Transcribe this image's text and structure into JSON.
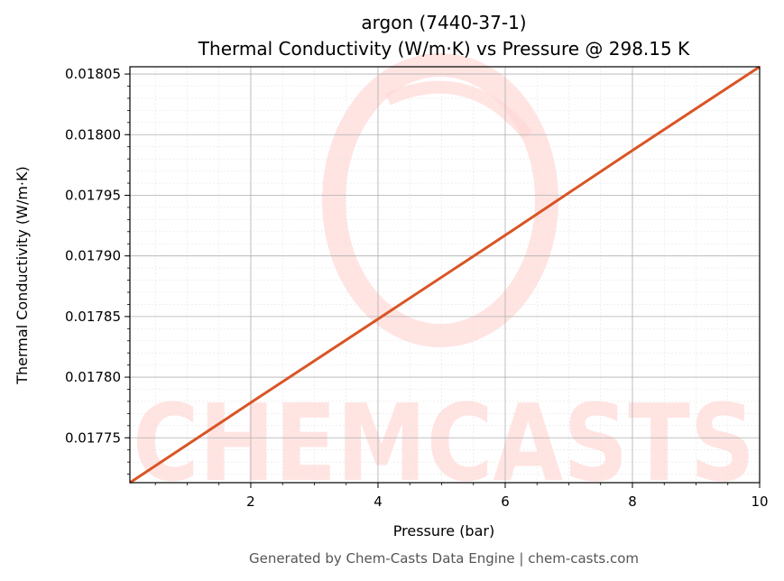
{
  "chart_data": {
    "type": "line",
    "title": "argon (7440-37-1)",
    "subtitle": "Thermal Conductivity (W/m·K) vs Pressure @ 298.15 K",
    "xlabel": "Pressure (bar)",
    "ylabel": "Thermal Conductivity (W/m·K)",
    "xlim": [
      0.1,
      10
    ],
    "ylim": [
      0.017713,
      0.018056
    ],
    "x_ticks": [
      2,
      4,
      6,
      8,
      10
    ],
    "x_tick_labels": [
      "2",
      "4",
      "6",
      "8",
      "10"
    ],
    "y_ticks": [
      0.01775,
      0.0178,
      0.01785,
      0.0179,
      0.01795,
      0.018,
      0.01805
    ],
    "y_tick_labels": [
      "0.01775",
      "0.01780",
      "0.01785",
      "0.01790",
      "0.01795",
      "0.01800",
      "0.01805"
    ],
    "grid": true,
    "minor_grid": true,
    "series": [
      {
        "color": "#d95525",
        "x": [
          0.1,
          2,
          4,
          6,
          8,
          10
        ],
        "y": [
          0.017713,
          0.017779,
          0.017848,
          0.017917,
          0.017987,
          0.018056
        ]
      }
    ]
  },
  "watermark": {
    "text": "CHEMCASTS",
    "color": "#ffd9d6"
  },
  "footer": "Generated by Chem-Casts Data Engine | chem-casts.com"
}
